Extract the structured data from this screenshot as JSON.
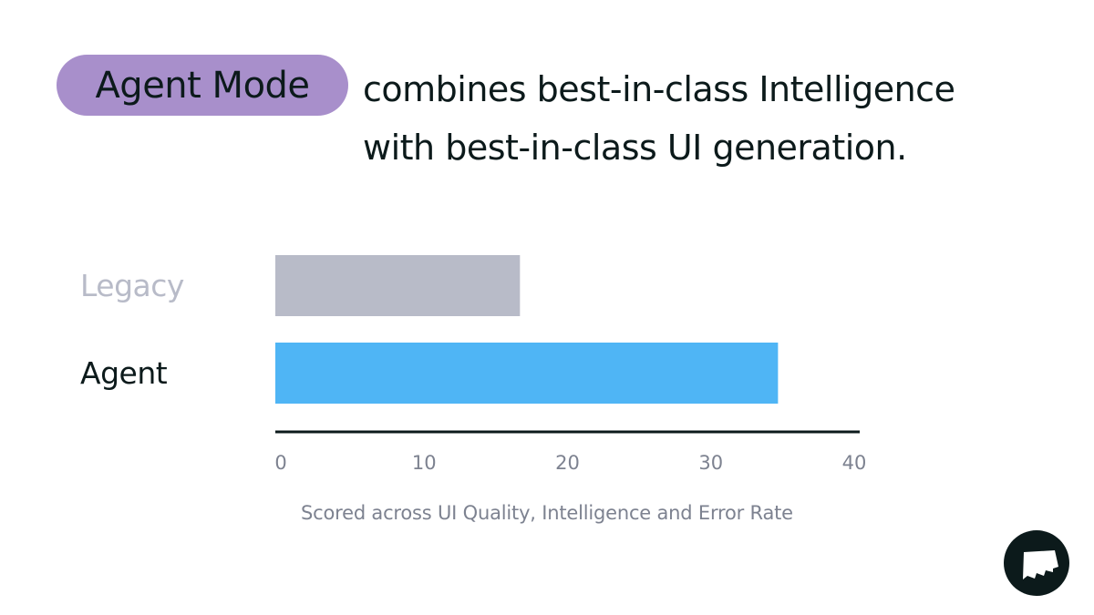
{
  "header": {
    "badge": "Agent Mode",
    "headline_line1": "combines best-in-class Intelligence",
    "headline_line2": "with best-in-class UI generation."
  },
  "chart_data": {
    "type": "bar",
    "orientation": "horizontal",
    "categories": [
      "Legacy",
      "Agent"
    ],
    "values": [
      17,
      35
    ],
    "colors": [
      "#b8bbc8",
      "#4fb5f5"
    ],
    "category_label_colors": [
      "#b8bbc8",
      "#0c1a1b"
    ],
    "xlim": [
      0,
      40
    ],
    "xticks": [
      "0",
      "10",
      "20",
      "30",
      "40"
    ],
    "xlabel": "Scored across UI Quality, Intelligence and Error Rate",
    "grid": false
  },
  "colors": {
    "badge": "#a88fcb",
    "text": "#0c1a1b",
    "tick": "#7d8290"
  },
  "logo": {
    "icon": "flag-logo-icon"
  }
}
